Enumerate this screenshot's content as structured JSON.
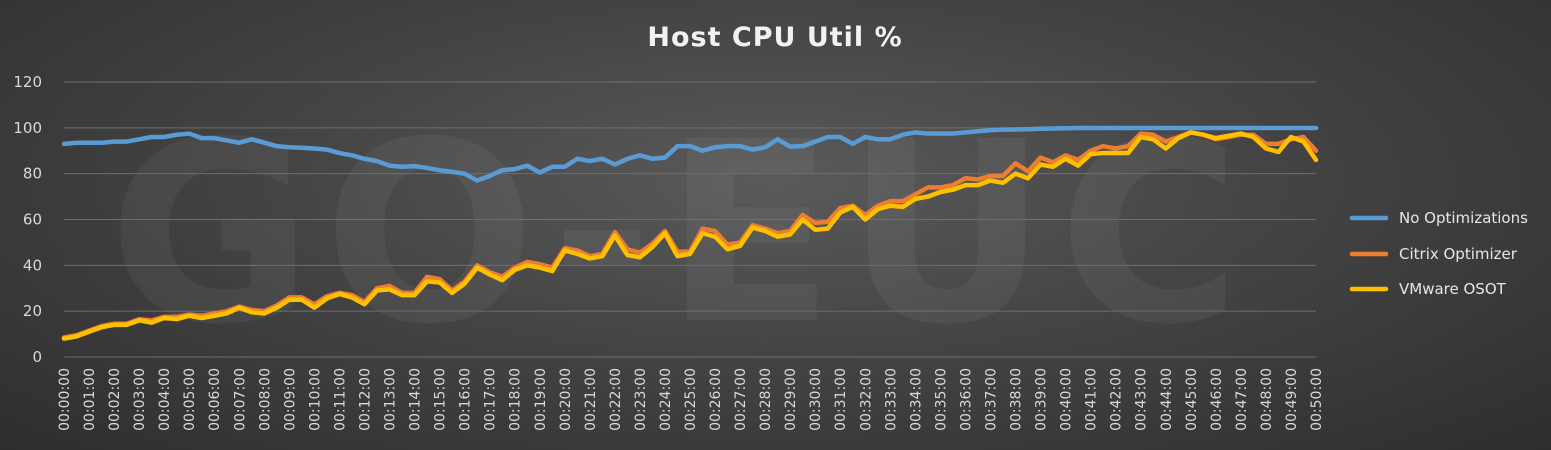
{
  "watermark": "GO-EUC",
  "chart_data": {
    "type": "line",
    "title": "Host CPU Util %",
    "xlabel": "",
    "ylabel": "",
    "ylim": [
      0,
      120
    ],
    "yticks": [
      0,
      20,
      40,
      60,
      80,
      100,
      120
    ],
    "grid": true,
    "legend_position": "right",
    "x_tick_labels": [
      "00:00:00",
      "00:01:00",
      "00:02:00",
      "00:03:00",
      "00:04:00",
      "00:05:00",
      "00:06:00",
      "00:07:00",
      "00:08:00",
      "00:09:00",
      "00:10:00",
      "00:11:00",
      "00:12:00",
      "00:13:00",
      "00:14:00",
      "00:15:00",
      "00:16:00",
      "00:17:00",
      "00:18:00",
      "00:19:00",
      "00:20:00",
      "00:21:00",
      "00:22:00",
      "00:23:00",
      "00:24:00",
      "00:25:00",
      "00:26:00",
      "00:27:00",
      "00:28:00",
      "00:29:00",
      "00:30:00",
      "00:31:00",
      "00:32:00",
      "00:33:00",
      "00:34:00",
      "00:35:00",
      "00:36:00",
      "00:37:00",
      "00:38:00",
      "00:39:00",
      "00:40:00",
      "00:41:00",
      "00:42:00",
      "00:43:00",
      "00:44:00",
      "00:45:00",
      "00:46:00",
      "00:47:00",
      "00:48:00",
      "00:49:00",
      "00:50:00"
    ],
    "x_minutes": [
      0,
      0.5,
      1,
      1.5,
      2,
      2.5,
      3,
      3.5,
      4,
      4.5,
      5,
      5.5,
      6,
      6.5,
      7,
      7.5,
      8,
      8.5,
      9,
      9.5,
      10,
      10.5,
      11,
      11.5,
      12,
      12.5,
      13,
      13.5,
      14,
      14.5,
      15,
      15.5,
      16,
      16.5,
      17,
      17.5,
      18,
      18.5,
      19,
      19.5,
      20,
      20.5,
      21,
      21.5,
      22,
      22.5,
      23,
      23.5,
      24,
      24.5,
      25,
      25.5,
      26,
      26.5,
      27,
      27.5,
      28,
      28.5,
      29,
      29.5,
      30,
      30.5,
      31,
      31.5,
      32,
      32.5,
      33,
      33.5,
      34,
      34.5,
      35,
      35.5,
      36,
      36.5,
      37,
      37.5,
      38,
      38.5,
      39,
      39.5,
      40,
      40.5,
      41,
      41.5,
      42,
      42.5,
      43,
      43.5,
      44,
      44.5,
      45,
      45.5,
      46,
      46.5,
      47,
      47.5,
      48,
      48.5,
      49,
      49.5,
      50
    ],
    "series": [
      {
        "name": "No Optimizations",
        "color": "#5b9bd5",
        "values": [
          93,
          93.5,
          93.5,
          93.5,
          94,
          94,
          95,
          96,
          96,
          97,
          97.5,
          95.5,
          95.5,
          94.5,
          93.5,
          95,
          93.5,
          92,
          91.5,
          91.3,
          91,
          90.5,
          89,
          88,
          86.5,
          85.5,
          83.5,
          83,
          83.3,
          82.5,
          81.5,
          80.8,
          80,
          77,
          79,
          81.5,
          82,
          83.5,
          80.5,
          83,
          83,
          86.5,
          85.5,
          86.5,
          84,
          86.5,
          88,
          86.5,
          87,
          92,
          92,
          90,
          91.5,
          92,
          92,
          90.5,
          91.5,
          95,
          91.8,
          92,
          94,
          96,
          96,
          93,
          96,
          95,
          95,
          97,
          98,
          97.5,
          97.5,
          97.5,
          98,
          98.5,
          99,
          99.2,
          99.3,
          99.4,
          99.6,
          99.7,
          99.8,
          99.9,
          99.9,
          99.9,
          99.9,
          99.9,
          99.9,
          99.9,
          99.9,
          99.9,
          99.9,
          99.9,
          99.9,
          99.9,
          99.9,
          99.9,
          99.9,
          99.9,
          99.9,
          99.9,
          99.9
        ]
      },
      {
        "name": "Citrix Optimizer",
        "color": "#ed7d31",
        "values": [
          8.5,
          9.5,
          11.5,
          13.5,
          14.5,
          14.5,
          16.5,
          16,
          17.5,
          17.5,
          18.5,
          18,
          19,
          20,
          22,
          20.5,
          20,
          22.5,
          26,
          26,
          23,
          26.5,
          28,
          27,
          24,
          30,
          31,
          28,
          28,
          35,
          34,
          29,
          33,
          40,
          37,
          35,
          39,
          41.5,
          40.5,
          39,
          47.5,
          46.5,
          44,
          45,
          54.5,
          47,
          45.5,
          49.5,
          55,
          46,
          46,
          56,
          55,
          49,
          50,
          57.5,
          56,
          54,
          55,
          62,
          58.5,
          59,
          65,
          66,
          62,
          66,
          68,
          68,
          71,
          74,
          74,
          75,
          78,
          77.5,
          79,
          79,
          84.5,
          81,
          87,
          85,
          88,
          86,
          90,
          92,
          91,
          92,
          97.5,
          97,
          94,
          96,
          98,
          97,
          95,
          96,
          97,
          97,
          93,
          93,
          95,
          96,
          90
        ]
      },
      {
        "name": "VMware OSOT",
        "color": "#ffc000",
        "values": [
          8,
          9,
          11,
          13,
          14,
          14,
          16,
          15,
          17,
          16.5,
          18,
          17,
          18,
          19,
          21.5,
          19.5,
          19,
          21.5,
          25,
          25,
          21.5,
          25.5,
          27.5,
          26,
          23,
          29,
          29.5,
          27,
          27,
          33,
          32.5,
          28,
          32,
          39,
          36,
          33.5,
          38,
          40,
          39,
          37.5,
          46.5,
          45,
          43,
          44,
          53,
          44.5,
          43.5,
          48,
          54,
          44,
          45,
          54,
          52.5,
          47,
          48.5,
          56.5,
          55,
          52.5,
          53.5,
          60,
          55.5,
          56,
          63,
          65.5,
          60,
          64.5,
          66,
          65.5,
          69,
          70,
          72,
          73,
          75,
          75,
          77,
          76,
          80,
          78,
          84,
          83,
          86.5,
          83.5,
          88.5,
          89,
          89,
          89,
          96,
          95,
          91,
          95.5,
          98,
          97,
          95.5,
          96.5,
          97.5,
          96,
          91,
          89.5,
          96,
          94,
          86
        ]
      }
    ]
  }
}
